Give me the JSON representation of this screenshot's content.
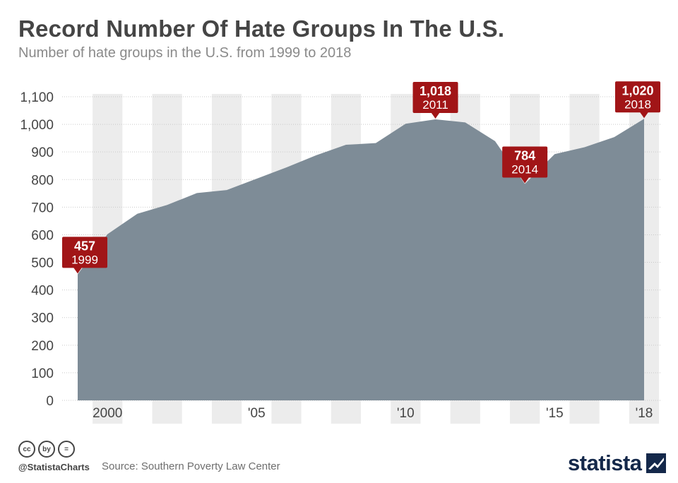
{
  "title": "Record Number Of Hate Groups In The U.S.",
  "subtitle": "Number of hate groups in the U.S. from 1999 to 2018",
  "footer": {
    "handle": "@StatistaCharts",
    "source": "Source: Southern Poverty Law Center",
    "brand": "statista",
    "cc_icons": [
      "cc",
      "by",
      "="
    ]
  },
  "colors": {
    "area": "#7e8c97",
    "band": "#ececec",
    "callout": "#a11517",
    "axis_text": "#454545"
  },
  "chart_data": {
    "type": "area",
    "x": [
      1999,
      2000,
      2001,
      2002,
      2003,
      2004,
      2005,
      2006,
      2007,
      2008,
      2009,
      2010,
      2011,
      2012,
      2013,
      2014,
      2015,
      2016,
      2017,
      2018
    ],
    "values": [
      457,
      602,
      676,
      708,
      751,
      762,
      803,
      844,
      888,
      926,
      932,
      1002,
      1018,
      1007,
      939,
      784,
      892,
      917,
      954,
      1020
    ],
    "ylim": [
      0,
      1100
    ],
    "yticks": [
      0,
      100,
      200,
      300,
      400,
      500,
      600,
      700,
      800,
      900,
      1000,
      1100
    ],
    "ytick_labels": [
      "0",
      "100",
      "200",
      "300",
      "400",
      "500",
      "600",
      "700",
      "800",
      "900",
      "1,000",
      "1,100"
    ],
    "xticks": [
      {
        "year": 2000,
        "label": "2000"
      },
      {
        "year": 2005,
        "label": "'05"
      },
      {
        "year": 2010,
        "label": "'10"
      },
      {
        "year": 2015,
        "label": "'15"
      },
      {
        "year": 2018,
        "label": "'18"
      }
    ],
    "callouts": [
      {
        "year": 1999,
        "value_label": "457",
        "year_label": "1999",
        "placement": "above"
      },
      {
        "year": 2011,
        "value_label": "1,018",
        "year_label": "2011",
        "placement": "above"
      },
      {
        "year": 2014,
        "value_label": "784",
        "year_label": "2014",
        "placement": "above"
      },
      {
        "year": 2018,
        "value_label": "1,020",
        "year_label": "2018",
        "placement": "above"
      }
    ],
    "grid": true,
    "alternating_year_bands": true
  }
}
